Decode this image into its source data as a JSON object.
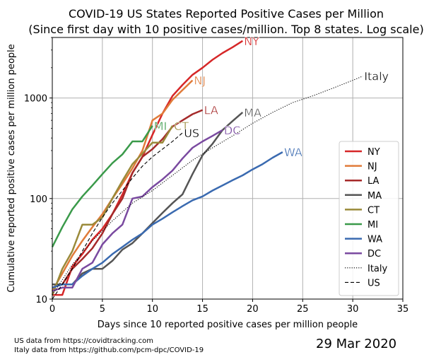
{
  "sources": {
    "us": "US data from https://covidtracking.com",
    "italy": "Italy data from https://github.com/pcm-dpc/COVID-19"
  },
  "date_stamp": "29 Mar 2020",
  "chart_data": {
    "type": "line",
    "title": "COVID-19 US States Reported Positive Cases per Million",
    "subtitle": "(Since first day with 10 positive cases/million. Top 8 states. Log scale)",
    "xlabel": "Days since 10 reported positive cases per million people",
    "ylabel": "Cumulative reported positive cases per million people",
    "xlim": [
      0,
      35
    ],
    "ylim": [
      10,
      4000
    ],
    "y_scale": "log",
    "grid": true,
    "legend_placement": "lower-right",
    "x_ticks": [
      0,
      5,
      10,
      15,
      20,
      25,
      30,
      35
    ],
    "y_ticks": [
      10,
      100,
      1000
    ],
    "series": [
      {
        "name": "NY",
        "color": "#d62728",
        "dash": "solid",
        "label": "NY",
        "x": [
          0,
          1,
          2,
          3,
          4,
          5,
          6,
          7,
          8,
          9,
          10,
          11,
          12,
          13,
          14,
          15,
          16,
          17,
          18,
          19
        ],
        "y": [
          11,
          11,
          21,
          28,
          39,
          50,
          70,
          110,
          180,
          260,
          430,
          700,
          1050,
          1350,
          1700,
          2000,
          2400,
          2800,
          3200,
          3700
        ]
      },
      {
        "name": "NJ",
        "color": "#e07b39",
        "dash": "solid",
        "label": "NJ",
        "x": [
          0,
          1,
          2,
          3,
          4,
          5,
          6,
          7,
          8,
          9,
          10,
          11,
          12,
          13,
          14
        ],
        "y": [
          12,
          18,
          27,
          38,
          52,
          70,
          100,
          140,
          200,
          300,
          600,
          700,
          960,
          1200,
          1500
        ]
      },
      {
        "name": "LA",
        "color": "#a52a2a",
        "dash": "solid",
        "label": "LA",
        "x": [
          0,
          1,
          2,
          3,
          4,
          5,
          6,
          7,
          8,
          9,
          10,
          11,
          12,
          13,
          14,
          15
        ],
        "y": [
          13,
          14,
          20,
          25,
          32,
          45,
          70,
          100,
          180,
          260,
          310,
          390,
          520,
          600,
          690,
          760
        ]
      },
      {
        "name": "MA",
        "color": "#555555",
        "dash": "solid",
        "label": "MA",
        "x": [
          0,
          1,
          2,
          3,
          4,
          5,
          6,
          7,
          8,
          9,
          10,
          11,
          12,
          13,
          14,
          15,
          16,
          17,
          18,
          19
        ],
        "y": [
          14,
          14,
          14,
          18,
          20,
          20,
          24,
          31,
          36,
          45,
          57,
          72,
          90,
          110,
          175,
          270,
          350,
          480,
          590,
          720
        ]
      },
      {
        "name": "CT",
        "color": "#9a8a3a",
        "dash": "solid",
        "label": "CT",
        "x": [
          0,
          1,
          2,
          3,
          4,
          5,
          6,
          7,
          8,
          9,
          10,
          11,
          12
        ],
        "y": [
          11,
          20,
          30,
          55,
          55,
          65,
          100,
          150,
          220,
          280,
          360,
          360,
          530
        ]
      },
      {
        "name": "MI",
        "color": "#3a9a4a",
        "dash": "solid",
        "label": "MI",
        "x": [
          0,
          1,
          2,
          3,
          4,
          5,
          6,
          7,
          8,
          9,
          10
        ],
        "y": [
          33,
          52,
          78,
          105,
          135,
          175,
          225,
          275,
          370,
          370,
          530
        ]
      },
      {
        "name": "WA",
        "color": "#3a6ab0",
        "dash": "solid",
        "label": "WA",
        "x": [
          0,
          1,
          2,
          3,
          4,
          5,
          6,
          7,
          8,
          9,
          10,
          11,
          12,
          13,
          14,
          15,
          16,
          17,
          18,
          19,
          20,
          21,
          22,
          23
        ],
        "y": [
          13,
          14,
          14,
          17,
          20,
          23,
          28,
          33,
          39,
          45,
          55,
          63,
          73,
          84,
          96,
          105,
          120,
          135,
          152,
          170,
          195,
          220,
          255,
          290
        ]
      },
      {
        "name": "DC",
        "color": "#7a4aa0",
        "dash": "solid",
        "label": "DC",
        "x": [
          0,
          1,
          2,
          3,
          4,
          5,
          6,
          7,
          8,
          9,
          10,
          11,
          12,
          13,
          14,
          15,
          16,
          17
        ],
        "y": [
          12,
          13,
          13,
          20,
          23,
          35,
          45,
          55,
          100,
          105,
          130,
          155,
          190,
          250,
          320,
          370,
          420,
          480
        ]
      },
      {
        "name": "Italy",
        "color": "#000000",
        "dash": "dotted",
        "label": "Italy",
        "x": [
          0,
          2,
          4,
          6,
          8,
          10,
          12,
          14,
          16,
          18,
          20,
          22,
          24,
          26,
          28,
          30,
          31
        ],
        "y": [
          11,
          22,
          38,
          60,
          90,
          120,
          170,
          240,
          320,
          420,
          560,
          720,
          900,
          1050,
          1250,
          1500,
          1650
        ]
      },
      {
        "name": "US",
        "color": "#000000",
        "dash": "dashed",
        "label": "US",
        "x": [
          0,
          1,
          2,
          3,
          4,
          5,
          6,
          7,
          8,
          9,
          10,
          11,
          12,
          13
        ],
        "y": [
          10,
          14,
          20,
          30,
          45,
          65,
          90,
          120,
          160,
          210,
          260,
          310,
          370,
          450
        ]
      }
    ]
  }
}
